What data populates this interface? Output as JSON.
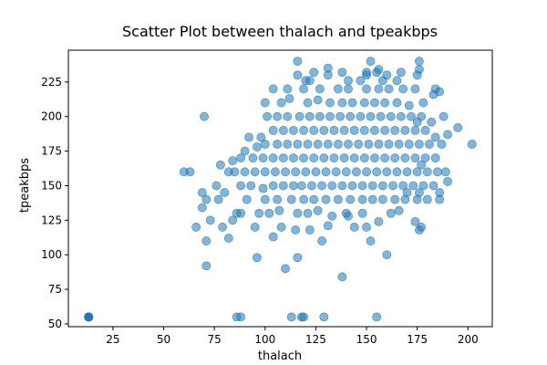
{
  "chart_data": {
    "type": "scatter",
    "title": "Scatter Plot between thalach and tpeakbps",
    "xlabel": "thalach",
    "ylabel": "tpeakbps",
    "xlim": [
      3,
      212
    ],
    "ylim": [
      48,
      248
    ],
    "xticks": [
      25,
      50,
      75,
      100,
      125,
      150,
      175,
      200
    ],
    "yticks": [
      50,
      75,
      100,
      125,
      150,
      175,
      200,
      225
    ],
    "grid": false,
    "marker_color": "#1f77b4",
    "marker_alpha": 0.55,
    "points": [
      [
        13,
        55
      ],
      [
        13,
        55
      ],
      [
        13,
        55
      ],
      [
        13,
        55
      ],
      [
        13,
        55
      ],
      [
        13,
        55
      ],
      [
        86,
        55
      ],
      [
        88,
        55
      ],
      [
        113,
        55
      ],
      [
        118,
        55
      ],
      [
        119,
        55
      ],
      [
        129,
        55
      ],
      [
        155,
        55
      ],
      [
        138,
        84
      ],
      [
        110,
        90
      ],
      [
        71,
        92
      ],
      [
        96,
        98
      ],
      [
        116,
        98
      ],
      [
        160,
        100
      ],
      [
        71,
        110
      ],
      [
        82,
        112
      ],
      [
        128,
        110
      ],
      [
        152,
        110
      ],
      [
        104,
        113
      ],
      [
        66,
        120
      ],
      [
        73,
        125
      ],
      [
        79,
        120
      ],
      [
        95,
        120
      ],
      [
        108,
        120
      ],
      [
        115,
        118
      ],
      [
        122,
        118
      ],
      [
        131,
        121
      ],
      [
        144,
        120
      ],
      [
        150,
        120
      ],
      [
        156,
        124
      ],
      [
        174,
        124
      ],
      [
        177,
        120
      ],
      [
        176,
        118
      ],
      [
        84,
        125
      ],
      [
        88,
        130
      ],
      [
        97,
        130
      ],
      [
        102,
        130
      ],
      [
        107,
        132
      ],
      [
        116,
        130
      ],
      [
        121,
        130
      ],
      [
        126,
        132
      ],
      [
        133,
        128
      ],
      [
        140,
        130
      ],
      [
        141,
        128
      ],
      [
        148,
        130
      ],
      [
        162,
        130
      ],
      [
        166,
        132
      ],
      [
        69,
        134
      ],
      [
        71,
        140
      ],
      [
        77,
        140
      ],
      [
        86,
        130
      ],
      [
        91,
        140
      ],
      [
        100,
        140
      ],
      [
        106,
        140
      ],
      [
        113,
        140
      ],
      [
        119,
        140
      ],
      [
        124,
        140
      ],
      [
        130,
        140
      ],
      [
        136,
        140
      ],
      [
        142,
        140
      ],
      [
        148,
        140
      ],
      [
        153,
        140
      ],
      [
        158,
        140
      ],
      [
        164,
        140
      ],
      [
        169,
        140
      ],
      [
        175,
        140
      ],
      [
        180,
        140
      ],
      [
        186,
        140
      ],
      [
        186,
        145
      ],
      [
        69,
        145
      ],
      [
        76,
        150
      ],
      [
        80,
        145
      ],
      [
        88,
        150
      ],
      [
        93,
        150
      ],
      [
        99,
        148
      ],
      [
        104,
        150
      ],
      [
        109,
        150
      ],
      [
        114,
        150
      ],
      [
        118,
        150
      ],
      [
        123,
        150
      ],
      [
        128,
        150
      ],
      [
        133,
        150
      ],
      [
        138,
        150
      ],
      [
        143,
        150
      ],
      [
        148,
        150
      ],
      [
        153,
        150
      ],
      [
        158,
        150
      ],
      [
        163,
        150
      ],
      [
        168,
        150
      ],
      [
        173,
        150
      ],
      [
        178,
        150
      ],
      [
        183,
        150
      ],
      [
        190,
        153
      ],
      [
        170,
        145
      ],
      [
        176,
        145
      ],
      [
        60,
        160
      ],
      [
        63,
        160
      ],
      [
        82,
        160
      ],
      [
        85,
        160
      ],
      [
        90,
        160
      ],
      [
        95,
        160
      ],
      [
        100,
        160
      ],
      [
        105,
        160
      ],
      [
        110,
        160
      ],
      [
        115,
        160
      ],
      [
        120,
        160
      ],
      [
        125,
        160
      ],
      [
        130,
        160
      ],
      [
        135,
        160
      ],
      [
        140,
        160
      ],
      [
        145,
        160
      ],
      [
        150,
        160
      ],
      [
        155,
        160
      ],
      [
        160,
        160
      ],
      [
        165,
        160
      ],
      [
        170,
        160
      ],
      [
        175,
        160
      ],
      [
        180,
        160
      ],
      [
        185,
        160
      ],
      [
        189,
        160
      ],
      [
        78,
        165
      ],
      [
        84,
        168
      ],
      [
        88,
        170
      ],
      [
        94,
        170
      ],
      [
        99,
        170
      ],
      [
        104,
        170
      ],
      [
        109,
        170
      ],
      [
        114,
        170
      ],
      [
        119,
        170
      ],
      [
        124,
        170
      ],
      [
        129,
        170
      ],
      [
        134,
        170
      ],
      [
        139,
        170
      ],
      [
        144,
        170
      ],
      [
        149,
        170
      ],
      [
        154,
        170
      ],
      [
        159,
        170
      ],
      [
        164,
        170
      ],
      [
        169,
        170
      ],
      [
        174,
        170
      ],
      [
        179,
        170
      ],
      [
        184,
        170
      ],
      [
        177,
        165
      ],
      [
        90,
        175
      ],
      [
        96,
        178
      ],
      [
        100,
        180
      ],
      [
        106,
        180
      ],
      [
        111,
        180
      ],
      [
        116,
        180
      ],
      [
        121,
        180
      ],
      [
        126,
        180
      ],
      [
        131,
        180
      ],
      [
        136,
        180
      ],
      [
        141,
        180
      ],
      [
        146,
        180
      ],
      [
        151,
        180
      ],
      [
        156,
        180
      ],
      [
        161,
        180
      ],
      [
        166,
        180
      ],
      [
        171,
        180
      ],
      [
        176,
        180
      ],
      [
        181,
        180
      ],
      [
        187,
        180
      ],
      [
        202,
        180
      ],
      [
        92,
        185
      ],
      [
        98,
        185
      ],
      [
        104,
        190
      ],
      [
        109,
        190
      ],
      [
        114,
        190
      ],
      [
        119,
        190
      ],
      [
        124,
        190
      ],
      [
        129,
        190
      ],
      [
        134,
        190
      ],
      [
        139,
        190
      ],
      [
        144,
        190
      ],
      [
        149,
        190
      ],
      [
        154,
        190
      ],
      [
        159,
        190
      ],
      [
        164,
        190
      ],
      [
        169,
        190
      ],
      [
        174,
        190
      ],
      [
        179,
        190
      ],
      [
        184,
        185
      ],
      [
        190,
        187
      ],
      [
        195,
        192
      ],
      [
        70,
        200
      ],
      [
        101,
        200
      ],
      [
        106,
        200
      ],
      [
        111,
        200
      ],
      [
        117,
        200
      ],
      [
        122,
        200
      ],
      [
        127,
        200
      ],
      [
        132,
        200
      ],
      [
        137,
        200
      ],
      [
        142,
        200
      ],
      [
        147,
        200
      ],
      [
        152,
        200
      ],
      [
        157,
        200
      ],
      [
        162,
        200
      ],
      [
        167,
        200
      ],
      [
        172,
        200
      ],
      [
        177,
        200
      ],
      [
        182,
        196
      ],
      [
        188,
        200
      ],
      [
        175,
        196
      ],
      [
        100,
        210
      ],
      [
        108,
        210
      ],
      [
        112,
        213
      ],
      [
        121,
        210
      ],
      [
        126,
        212
      ],
      [
        132,
        210
      ],
      [
        138,
        210
      ],
      [
        143,
        210
      ],
      [
        149,
        210
      ],
      [
        154,
        210
      ],
      [
        159,
        210
      ],
      [
        165,
        210
      ],
      [
        171,
        208
      ],
      [
        178,
        210
      ],
      [
        183,
        216
      ],
      [
        104,
        220
      ],
      [
        111,
        220
      ],
      [
        119,
        220
      ],
      [
        127,
        220
      ],
      [
        136,
        220
      ],
      [
        141,
        220
      ],
      [
        150,
        220
      ],
      [
        156,
        220
      ],
      [
        161,
        220
      ],
      [
        168,
        220
      ],
      [
        174,
        220
      ],
      [
        184,
        220
      ],
      [
        186,
        218
      ],
      [
        116,
        230
      ],
      [
        120,
        226
      ],
      [
        131,
        230
      ],
      [
        141,
        226
      ],
      [
        150,
        230
      ],
      [
        155,
        232
      ],
      [
        160,
        230
      ],
      [
        165,
        226
      ],
      [
        175,
        230
      ],
      [
        124,
        232
      ],
      [
        131,
        235
      ],
      [
        138,
        232
      ],
      [
        150,
        232
      ],
      [
        156,
        234
      ],
      [
        167,
        232
      ],
      [
        176,
        234
      ],
      [
        116,
        240
      ],
      [
        152,
        240
      ],
      [
        176,
        240
      ],
      [
        122,
        226
      ],
      [
        147,
        226
      ],
      [
        158,
        226
      ]
    ]
  }
}
